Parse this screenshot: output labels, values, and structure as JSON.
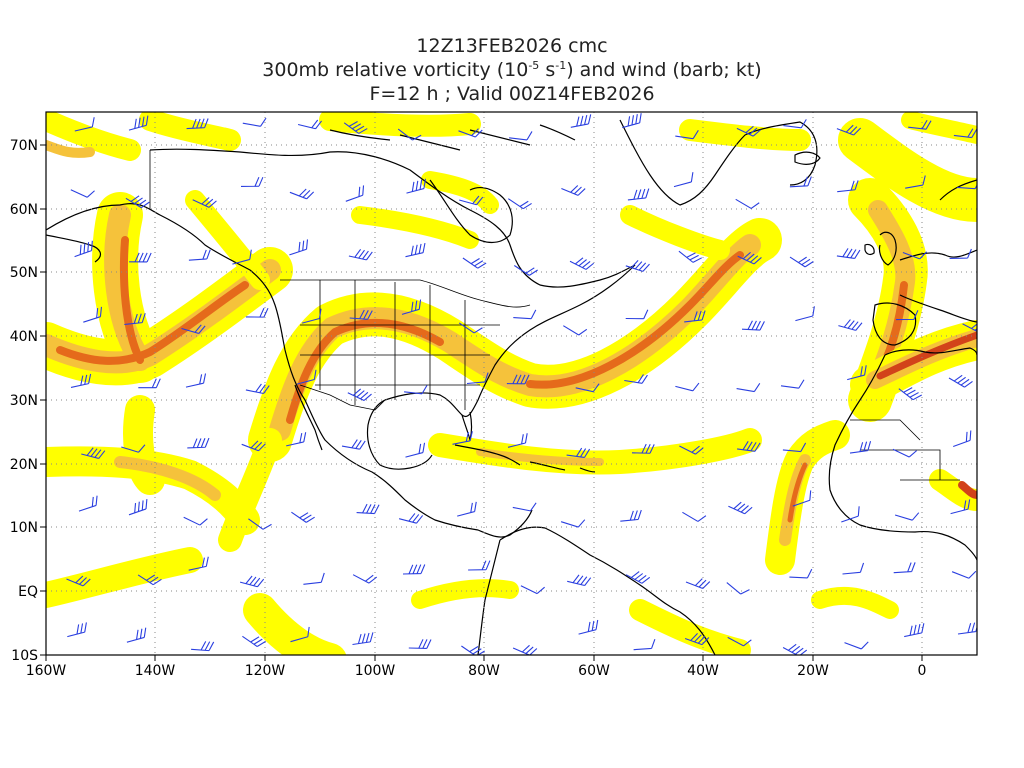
{
  "title": {
    "line1": "12Z13FEB2026 cmc",
    "line2_pre": "300mb relative vorticity (10",
    "line2_exp1": "-5",
    "line2_mid": " s",
    "line2_exp2": "-1",
    "line2_post": ") and wind (barb; kt)",
    "line3": "F=12 h ; Valid 00Z14FEB2026"
  },
  "axes": {
    "lon_range": [
      -160,
      10
    ],
    "lat_range": [
      -10,
      75
    ],
    "lon_ticks": [
      "160W",
      "140W",
      "120W",
      "100W",
      "80W",
      "60W",
      "40W",
      "20W",
      "0"
    ],
    "lat_ticks": [
      "70N",
      "60N",
      "50N",
      "40N",
      "30N",
      "20N",
      "10N",
      "EQ",
      "10S"
    ]
  },
  "legend": {
    "fill_colors": [
      "#ffff00",
      "#f7e33a",
      "#f5c23b",
      "#f09a2a",
      "#e56a1b",
      "#d2421a"
    ],
    "barb_color": "#2a3fe0",
    "coast_color": "#000000"
  }
}
